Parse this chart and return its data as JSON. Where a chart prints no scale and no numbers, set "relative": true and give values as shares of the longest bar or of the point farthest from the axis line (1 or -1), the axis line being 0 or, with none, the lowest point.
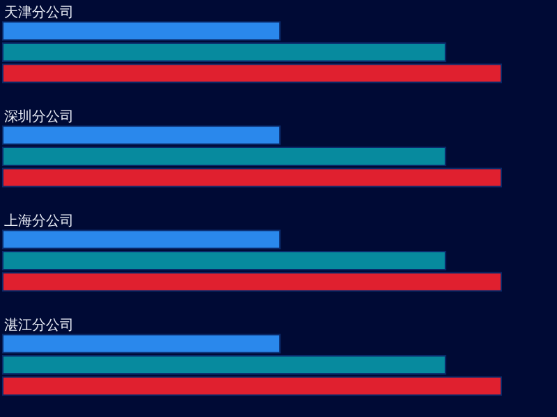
{
  "chart_data": {
    "type": "bar",
    "orientation": "horizontal",
    "relative": true,
    "categories": [
      "天津分公司",
      "深圳分公司",
      "上海分公司",
      "湛江分公司"
    ],
    "series": [
      {
        "color": "#2a88ec",
        "values": [
          0.556,
          0.556,
          0.556,
          0.556
        ]
      },
      {
        "color": "#078a9e",
        "values": [
          0.888,
          0.888,
          0.888,
          0.888
        ]
      },
      {
        "color": "#e0202f",
        "values": [
          1,
          1,
          1,
          1
        ]
      }
    ]
  }
}
